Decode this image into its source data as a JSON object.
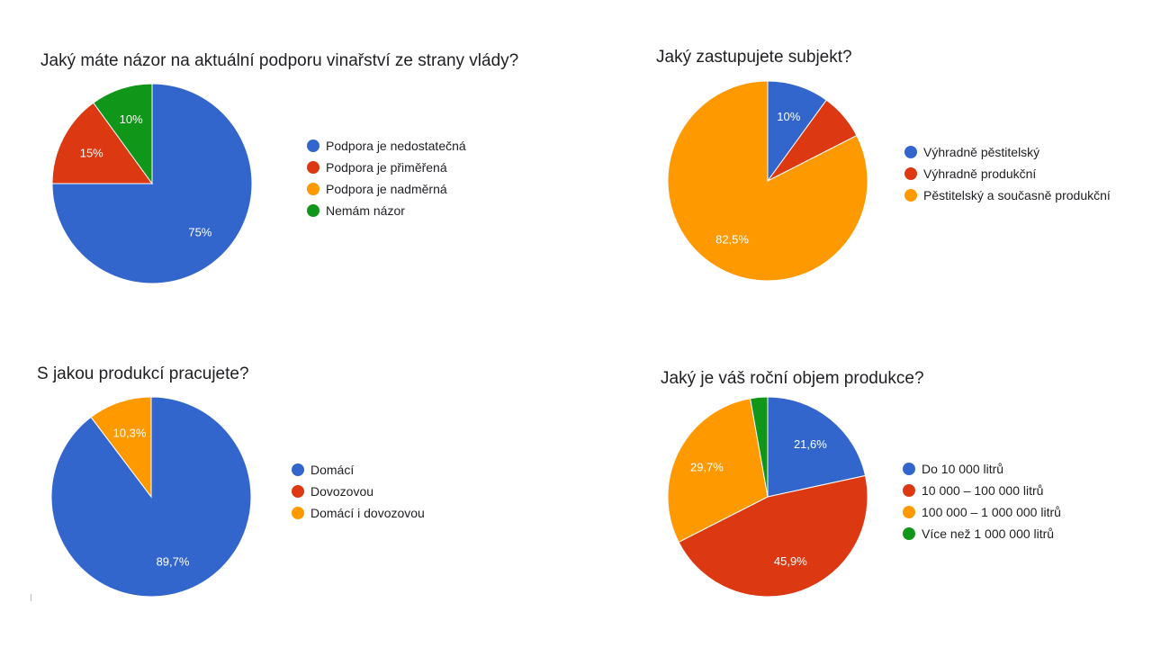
{
  "colors": {
    "blue": "#3366cc",
    "red": "#dc3912",
    "orange": "#ff9900",
    "green": "#109618"
  },
  "chart_data": [
    {
      "type": "pie",
      "title": "Jaký máte názor na aktuální podporu vinařství ze strany vlády?",
      "legend_position": "right",
      "slices": [
        {
          "label": "Podpora je nedostatečná",
          "value": 75,
          "display": "75%",
          "color": "#3366cc"
        },
        {
          "label": "Podpora je přiměřená",
          "value": 15,
          "display": "15%",
          "color": "#dc3912"
        },
        {
          "label": "Podpora je nadměrná",
          "value": 0,
          "display": "",
          "color": "#ff9900"
        },
        {
          "label": "Nemám názor",
          "value": 10,
          "display": "10%",
          "color": "#109618"
        }
      ]
    },
    {
      "type": "pie",
      "title": "Jaký zastupujete subjekt?",
      "legend_position": "right",
      "slices": [
        {
          "label": "Výhradně pěstitelský",
          "value": 10,
          "display": "10%",
          "color": "#3366cc"
        },
        {
          "label": "Výhradně produkční",
          "value": 7.5,
          "display": "",
          "color": "#dc3912"
        },
        {
          "label": "Pěstitelský a současně produkční",
          "value": 82.5,
          "display": "82,5%",
          "color": "#ff9900"
        }
      ]
    },
    {
      "type": "pie",
      "title": "S jakou produkcí pracujete?",
      "legend_position": "right",
      "slices": [
        {
          "label": "Domácí",
          "value": 89.7,
          "display": "89,7%",
          "color": "#3366cc"
        },
        {
          "label": "Dovozovou",
          "value": 0,
          "display": "",
          "color": "#dc3912"
        },
        {
          "label": "Domácí i dovozovou",
          "value": 10.3,
          "display": "10,3%",
          "color": "#ff9900"
        }
      ]
    },
    {
      "type": "pie",
      "title": "Jaký je váš roční objem produkce?",
      "legend_position": "right",
      "slices": [
        {
          "label": "Do 10 000 litrů",
          "value": 21.6,
          "display": "21,6%",
          "color": "#3366cc"
        },
        {
          "label": "10 000 – 100 000 litrů",
          "value": 45.9,
          "display": "45,9%",
          "color": "#dc3912"
        },
        {
          "label": "100 000 – 1 000 000 litrů",
          "value": 29.7,
          "display": "29,7%",
          "color": "#ff9900"
        },
        {
          "label": "Více než 1 000 000 litrů",
          "value": 2.8,
          "display": "",
          "color": "#109618"
        }
      ]
    }
  ]
}
